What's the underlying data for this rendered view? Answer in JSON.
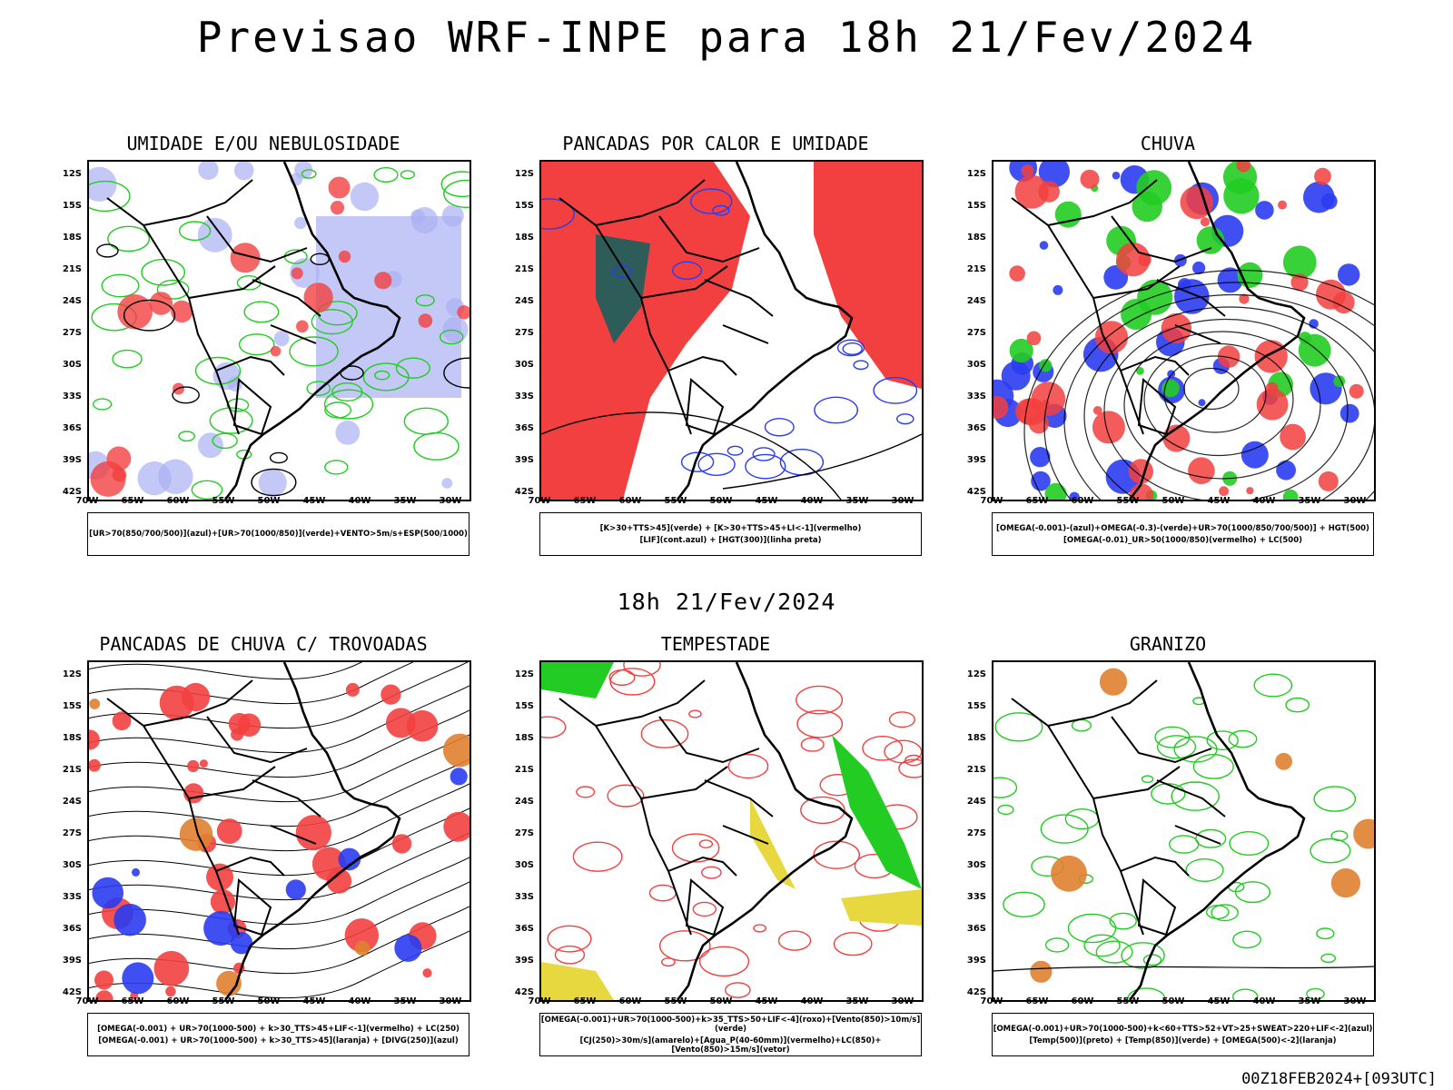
{
  "header": {
    "title": "Previsao WRF-INPE  para 18h 21/Fev/2024"
  },
  "middle_title": "18h 21/Fev/2024",
  "footer_stamp": "00Z18FEB2024+[093UTC]",
  "axes": {
    "lat_ticks": [
      "12S",
      "15S",
      "18S",
      "21S",
      "24S",
      "27S",
      "30S",
      "33S",
      "36S",
      "39S",
      "42S"
    ],
    "lon_ticks": [
      "70W",
      "65W",
      "60W",
      "55W",
      "50W",
      "45W",
      "40W",
      "35W",
      "30W"
    ]
  },
  "colors": {
    "red": "#f24040",
    "green": "#22cc22",
    "blue": "#2a3cf0",
    "lavender": "#aab0f2",
    "teal": "#2e5c58",
    "yellow": "#e8d840",
    "orange": "#e08030"
  },
  "panels": [
    {
      "title": "UMIDADE E/OU NEBULOSIDADE",
      "legend": [
        "[UR>70(850/700/500)](azul)+[UR>70(1000/850)](verde)+VENTO>5m/s+ESP(500/1000)"
      ]
    },
    {
      "title": "PANCADAS POR CALOR E UMIDADE",
      "legend": [
        "[K>30+TTS>45](verde) + [K>30+TTS>45+LI<-1](vermelho)",
        "[LIF](cont.azul) + [HGT(300)](linha preta)"
      ]
    },
    {
      "title": "CHUVA",
      "legend": [
        "[OMEGA(-0.001)-(azul)+OMEGA(-0.3)-(verde)+UR>70(1000/850/700/500)] + HGT(500)",
        "[OMEGA(-0.01)_UR>50(1000/850)(vermelho) + LC(500)"
      ]
    },
    {
      "title": "PANCADAS DE CHUVA C/ TROVOADAS",
      "legend": [
        "[OMEGA(-0.001) + UR>70(1000-500) + k>30_TTS>45+LIF<-1](vermelho) + LC(250)",
        "[OMEGA(-0.001) + UR>70(1000-500) + k>30_TTS>45](laranja) + [DIVG(250)](azul)"
      ]
    },
    {
      "title": "TEMPESTADE",
      "legend": [
        "[OMEGA(-0.001)+UR>70(1000-500)+k>35_TTS>50+LIF<-4](roxo)+[Vento(850)>10m/s](verde)",
        "[CJ(250)>30m/s](amarelo)+[Agua_P(40-60mm)](vermelho)+LC(850)+[Vento(850)>15m/s](vetor)"
      ]
    },
    {
      "title": "GRANIZO",
      "legend": [
        "[OMEGA(-0.001)+UR>70(1000-500)+k<60+TTS>52+VT>25+SWEAT>220+LIF<-2](azul)",
        "[Temp(500)](preto) + [Temp(850)](verde) + [OMEGA(500)<-2](laranja)"
      ]
    }
  ]
}
